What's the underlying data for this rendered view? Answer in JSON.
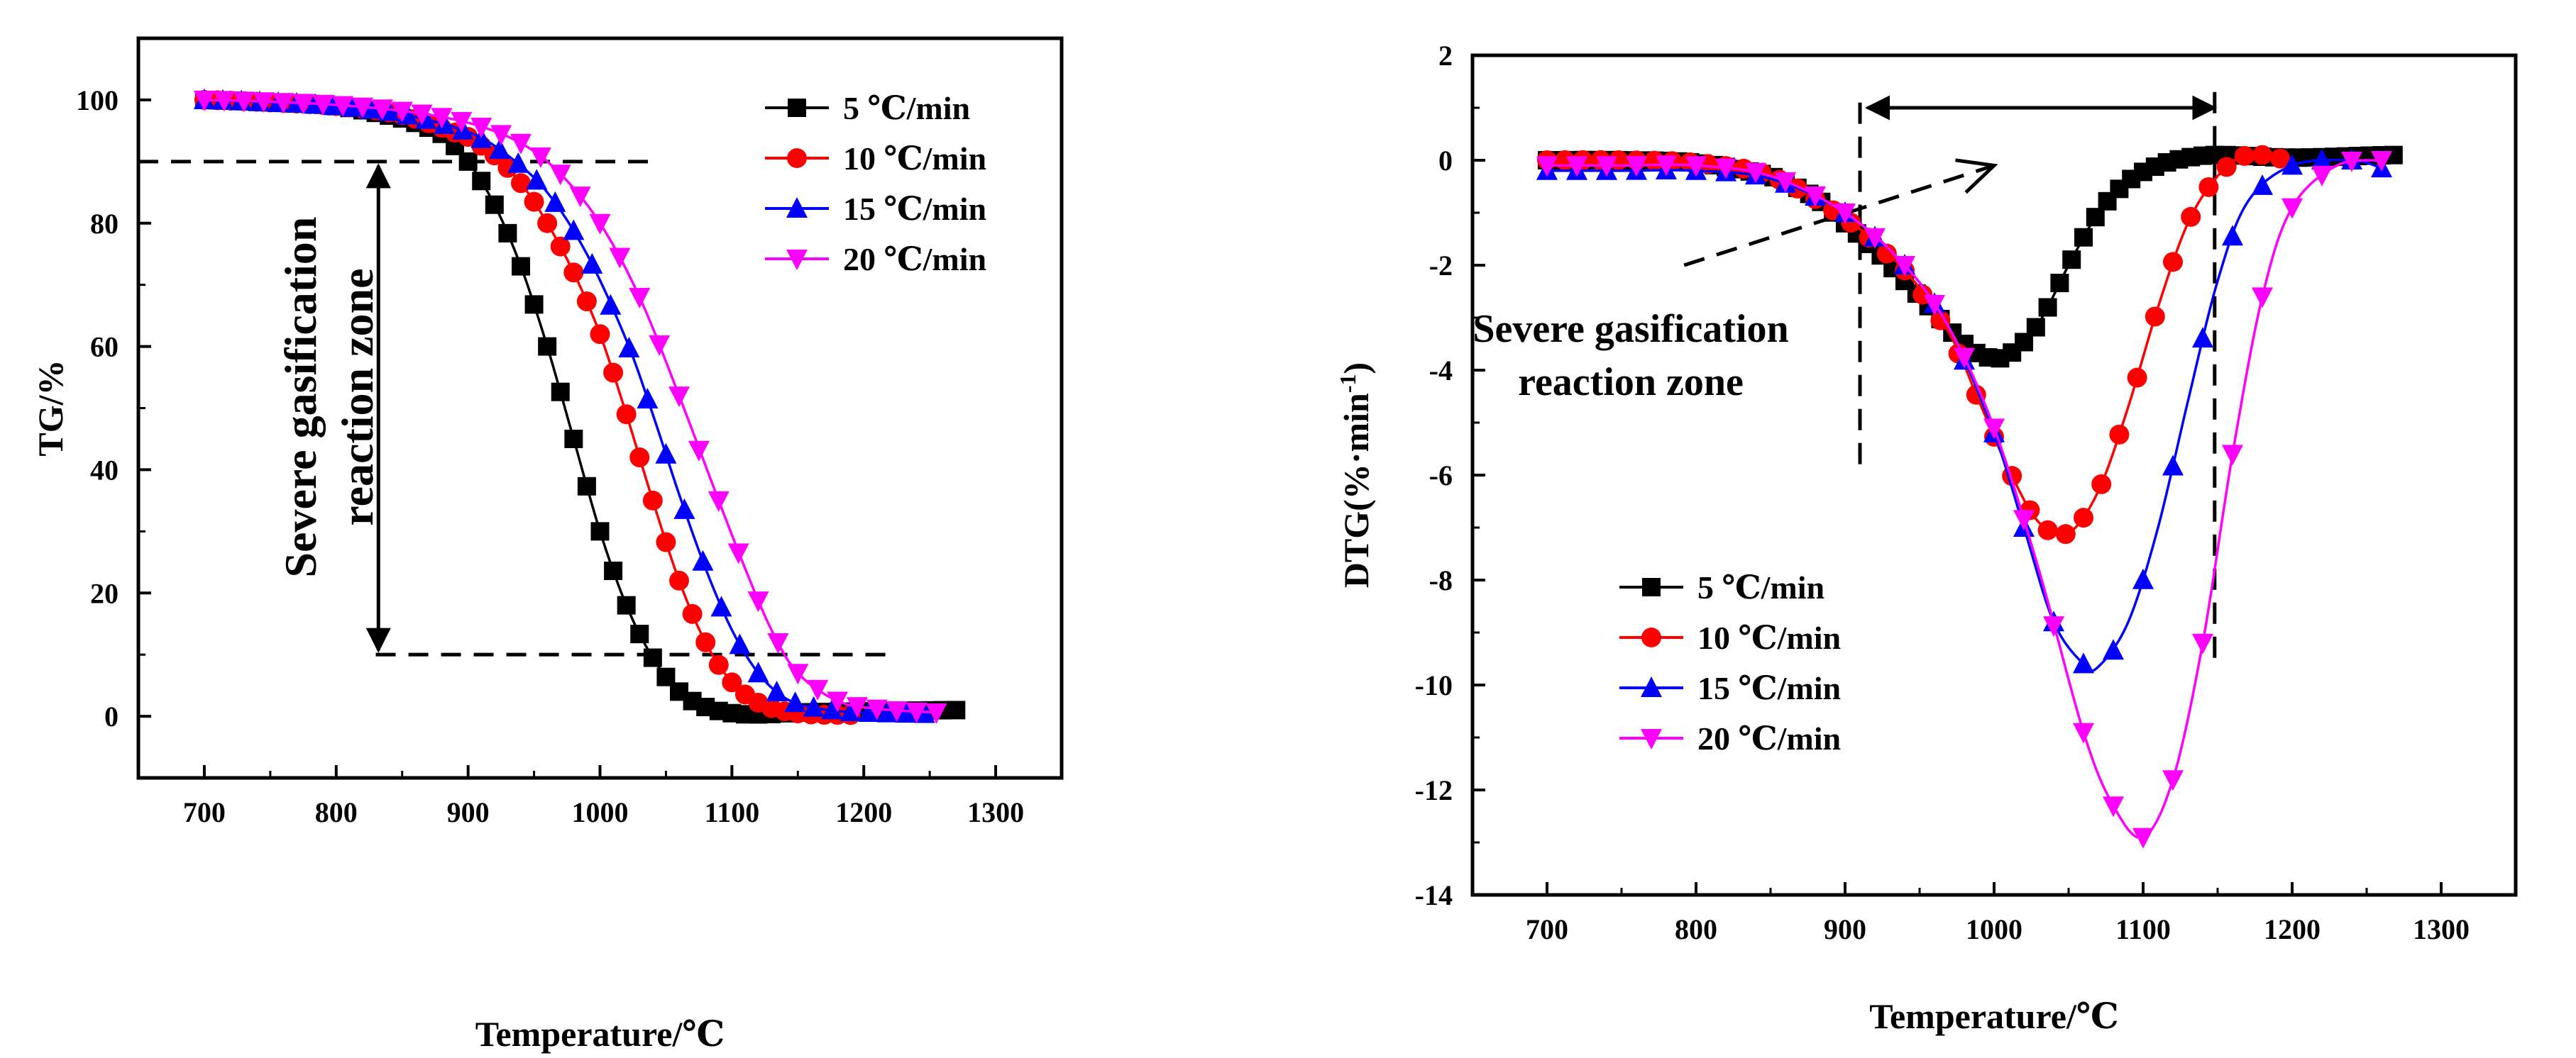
{
  "chart_data": [
    {
      "type": "line",
      "id": "tg",
      "title": "",
      "xlabel": "Temperature/℃",
      "ylabel": "TG/%",
      "xlim": [
        650,
        1350
      ],
      "ylim": [
        -10,
        110
      ],
      "xticks": [
        700,
        800,
        900,
        1000,
        1100,
        1200,
        1300
      ],
      "xtick_labels": [
        "700",
        "800",
        "900",
        "1000",
        "1100",
        "1200",
        "1300"
      ],
      "yticks": [
        0,
        20,
        40,
        60,
        80,
        100
      ],
      "ytick_labels": [
        "0",
        "20",
        "40",
        "60",
        "80",
        "100"
      ],
      "legend_position": "top-right",
      "series": [
        {
          "name": "5 ℃/min",
          "color": "#000000",
          "marker": "square",
          "x": [
            700,
            750,
            800,
            850,
            880,
            900,
            920,
            940,
            960,
            980,
            1000,
            1020,
            1040,
            1060,
            1080,
            1100,
            1120,
            1150,
            1200,
            1270
          ],
          "y": [
            100,
            99.6,
            99,
            97,
            94.5,
            90,
            83,
            73,
            60,
            45,
            30,
            18,
            9.5,
            4,
            1.5,
            0.5,
            0.3,
            0.6,
            0.8,
            1
          ]
        },
        {
          "name": "10 ℃/min",
          "color": "#ff0000",
          "marker": "circle",
          "x": [
            700,
            750,
            800,
            850,
            900,
            920,
            940,
            960,
            980,
            1000,
            1020,
            1040,
            1060,
            1080,
            1100,
            1120,
            1140,
            1160,
            1190
          ],
          "y": [
            100,
            99.6,
            99,
            97.5,
            94,
            91,
            86.5,
            80,
            72,
            62,
            49,
            35,
            22,
            12,
            5.5,
            2.2,
            0.8,
            0.3,
            0.2
          ]
        },
        {
          "name": "15 ℃/min",
          "color": "#0000ff",
          "marker": "triangle-up",
          "x": [
            700,
            750,
            800,
            850,
            900,
            930,
            960,
            990,
            1020,
            1040,
            1060,
            1080,
            1100,
            1120,
            1140,
            1160,
            1190,
            1250
          ],
          "y": [
            100,
            99.6,
            99,
            97.7,
            94.8,
            91,
            85,
            75,
            61,
            49,
            36,
            24,
            14,
            7,
            3,
            1.5,
            0.7,
            0.4
          ]
        },
        {
          "name": "20 ℃/min",
          "color": "#ff00ff",
          "marker": "triangle-down",
          "x": [
            700,
            750,
            800,
            850,
            900,
            940,
            970,
            1000,
            1030,
            1060,
            1090,
            1110,
            1130,
            1150,
            1180,
            1210,
            1255
          ],
          "y": [
            100,
            99.7,
            99.2,
            98.2,
            96.3,
            93,
            88,
            80,
            68,
            52,
            35,
            24,
            14,
            7,
            2.5,
            1.2,
            0.6
          ]
        }
      ],
      "annotations": [
        {
          "type": "text",
          "lines": [
            "Severe gasification",
            "reaction zone"
          ],
          "rotated": true
        },
        {
          "type": "double-arrow",
          "orientation": "vertical",
          "x": 832,
          "y1": 10,
          "y2": 90
        },
        {
          "type": "dashed-line",
          "x1": 650,
          "x2": 1040,
          "y": 90
        },
        {
          "type": "dashed-line",
          "x1": 830,
          "x2": 1220,
          "y": 10
        }
      ]
    },
    {
      "type": "line",
      "id": "dtg",
      "title": "",
      "xlabel": "Temperature/℃",
      "ylabel": "DTG(%·min",
      "ylabel_sup": "-1",
      "ylabel_close": ")",
      "xlim": [
        650,
        1350
      ],
      "ylim": [
        -14,
        2
      ],
      "xticks": [
        700,
        800,
        900,
        1000,
        1100,
        1200,
        1300
      ],
      "xtick_labels": [
        "700",
        "800",
        "900",
        "1000",
        "1100",
        "1200",
        "1300"
      ],
      "yticks": [
        2,
        0,
        -2,
        -4,
        -6,
        -8,
        -10,
        -12,
        -14
      ],
      "ytick_labels": [
        "2",
        "0",
        "-2",
        "-4",
        "-6",
        "-8",
        "-10",
        "-12",
        "-14"
      ],
      "legend_position": "bottom-left",
      "series": [
        {
          "name": "5 ℃/min",
          "color": "#000000",
          "marker": "square",
          "x": [
            700,
            750,
            800,
            850,
            880,
            900,
            920,
            940,
            960,
            980,
            995,
            1010,
            1030,
            1050,
            1070,
            1090,
            1110,
            1130,
            1150,
            1200,
            1270
          ],
          "y": [
            0,
            0,
            -0.05,
            -0.3,
            -0.7,
            -1.2,
            -1.7,
            -2.3,
            -2.9,
            -3.5,
            -3.75,
            -3.7,
            -3.1,
            -2.0,
            -1.0,
            -0.4,
            -0.1,
            0.05,
            0.1,
            0.05,
            0.1
          ]
        },
        {
          "name": "10 ℃/min",
          "color": "#ff0000",
          "marker": "circle",
          "x": [
            700,
            750,
            800,
            850,
            900,
            940,
            970,
            990,
            1010,
            1030,
            1050,
            1070,
            1090,
            1110,
            1130,
            1150,
            1170,
            1200
          ],
          "y": [
            0,
            0,
            -0.05,
            -0.3,
            -1.1,
            -2.1,
            -3.3,
            -4.6,
            -5.9,
            -6.9,
            -7.1,
            -6.3,
            -4.7,
            -2.8,
            -1.2,
            -0.3,
            0.1,
            0
          ]
        },
        {
          "name": "15 ℃/min",
          "color": "#0000ff",
          "marker": "triangle-up",
          "x": [
            700,
            750,
            800,
            850,
            900,
            940,
            970,
            1000,
            1020,
            1040,
            1060,
            1070,
            1090,
            1110,
            1130,
            1150,
            1170,
            1200,
            1240,
            1260
          ],
          "y": [
            -0.2,
            -0.2,
            -0.2,
            -0.35,
            -1.0,
            -2.0,
            -3.2,
            -5.2,
            -7.0,
            -8.8,
            -9.6,
            -9.65,
            -8.8,
            -7.0,
            -4.6,
            -2.3,
            -0.8,
            -0.1,
            0,
            -0.15
          ]
        },
        {
          "name": "20 ℃/min",
          "color": "#ff00ff",
          "marker": "triangle-down",
          "x": [
            700,
            750,
            800,
            850,
            900,
            940,
            970,
            1000,
            1030,
            1060,
            1080,
            1100,
            1120,
            1140,
            1160,
            1180,
            1200,
            1230,
            1260
          ],
          "y": [
            -0.1,
            -0.1,
            -0.1,
            -0.3,
            -1.0,
            -2.0,
            -3.2,
            -5.1,
            -7.8,
            -10.9,
            -12.3,
            -12.9,
            -11.8,
            -9.2,
            -5.6,
            -2.6,
            -0.9,
            -0.1,
            0
          ]
        }
      ],
      "annotations": [
        {
          "type": "text",
          "lines": [
            "Severe gasification",
            "reaction zone"
          ],
          "rotated": false
        },
        {
          "type": "double-arrow",
          "orientation": "horizontal",
          "y": 1.0,
          "x1": 915,
          "x2": 1148
        },
        {
          "type": "dashed-line",
          "orientation": "vertical",
          "x": 910,
          "y1": 1.1,
          "y2": -6.0
        },
        {
          "type": "dashed-line",
          "orientation": "vertical",
          "x": 1148,
          "y1": 1.3,
          "y2": -9.6
        },
        {
          "type": "dashed-arrow",
          "from": [
            792,
            -2.0
          ],
          "to": [
            1000,
            -0.1
          ]
        }
      ]
    }
  ]
}
